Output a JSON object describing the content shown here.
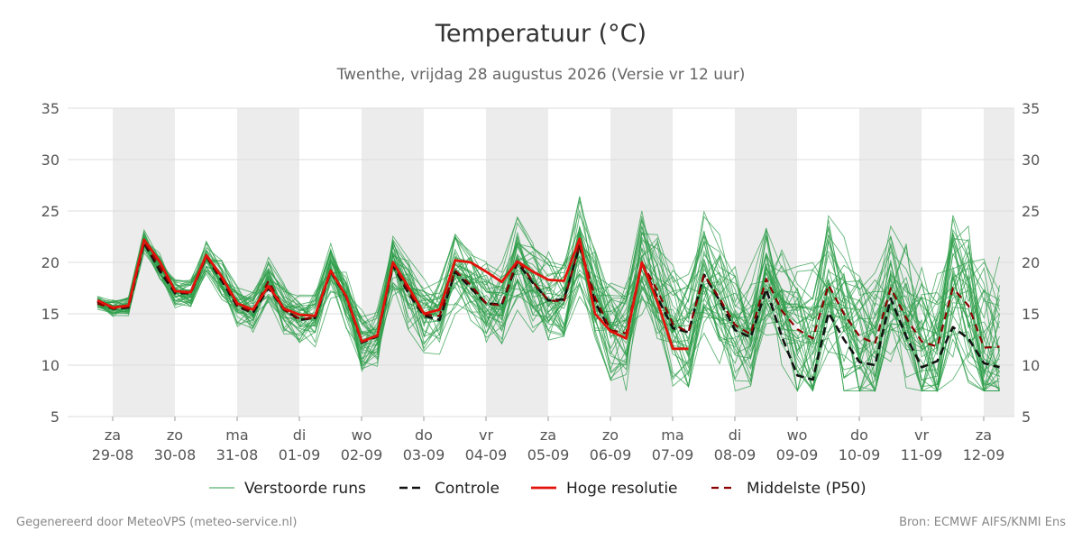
{
  "header": {
    "title": "Temperatuur (°C)",
    "subtitle": "Twenthe, vrijdag 28 augustus 2026 (Versie vr 12 uur)"
  },
  "footer": {
    "generated": "Gegenereerd door MeteoVPS (meteo-service.nl)",
    "source": "Bron: ECMWF AIFS/KNMI Ens"
  },
  "colors": {
    "ensemble": "#2e9e4a",
    "control": "#111111",
    "hires": "#e3120b",
    "median": "#8b0000",
    "band": "#ececec",
    "grid": "#dddddd"
  },
  "chart_data": {
    "type": "line",
    "title": "Temperatuur (°C)",
    "ylim": [
      5,
      35
    ],
    "yticks": [
      5,
      10,
      15,
      20,
      25,
      30,
      35
    ],
    "x_step_hours": 6,
    "grid": true,
    "legend_position": "bottom",
    "day_ticks": [
      {
        "day": "za",
        "date": "29-08"
      },
      {
        "day": "zo",
        "date": "30-08"
      },
      {
        "day": "ma",
        "date": "31-08"
      },
      {
        "day": "di",
        "date": "01-09"
      },
      {
        "day": "wo",
        "date": "02-09"
      },
      {
        "day": "do",
        "date": "03-09"
      },
      {
        "day": "vr",
        "date": "04-09"
      },
      {
        "day": "za",
        "date": "05-09"
      },
      {
        "day": "zo",
        "date": "06-09"
      },
      {
        "day": "ma",
        "date": "07-09"
      },
      {
        "day": "di",
        "date": "08-09"
      },
      {
        "day": "wo",
        "date": "09-09"
      },
      {
        "day": "do",
        "date": "10-09"
      },
      {
        "day": "vr",
        "date": "11-09"
      },
      {
        "day": "za",
        "date": "12-09"
      }
    ],
    "legend": [
      {
        "key": "ensemble",
        "label": "Verstoorde runs"
      },
      {
        "key": "control",
        "label": "Controle"
      },
      {
        "key": "hires",
        "label": "Hoge resolutie"
      },
      {
        "key": "median",
        "label": "Middelste (P50)"
      }
    ],
    "series": [
      {
        "name": "Hoge resolutie",
        "key": "hires",
        "values": [
          16.3,
          15.6,
          15.8,
          22.2,
          20.1,
          17.2,
          17.1,
          20.7,
          18.6,
          16.0,
          15.4,
          17.7,
          15.5,
          14.9,
          14.8,
          19.2,
          16.7,
          12.3,
          12.9,
          20.0,
          17.6,
          15.0,
          15.4,
          20.2,
          20.0,
          19.1,
          18.1,
          20.1,
          19.1,
          18.3,
          18.2,
          22.3,
          15.0,
          13.3,
          12.6,
          20.0,
          16.2,
          11.6,
          11.6
        ]
      },
      {
        "name": "Controle",
        "key": "control",
        "values": [
          16.2,
          15.5,
          15.6,
          21.9,
          19.2,
          17.0,
          17.0,
          20.6,
          18.2,
          15.7,
          15.1,
          17.5,
          15.4,
          14.4,
          14.6,
          19.1,
          16.6,
          12.2,
          12.8,
          19.7,
          17.0,
          14.8,
          14.4,
          19.1,
          17.5,
          16.0,
          15.9,
          20.0,
          18.0,
          16.3,
          16.4,
          21.6,
          16.1,
          13.3,
          12.6,
          19.9,
          16.6,
          13.6,
          13.2,
          18.8,
          16.3,
          13.4,
          12.7,
          17.4,
          12.8,
          9.0,
          8.6,
          15.1,
          12.5,
          10.3,
          10.0,
          16.5,
          12.8,
          9.8,
          10.4,
          13.7,
          12.6,
          10.2,
          9.8,
          17.5
        ]
      },
      {
        "name": "Middelste (P50)",
        "key": "median",
        "values": [
          16.0,
          15.5,
          15.7,
          22.0,
          19.6,
          17.1,
          17.0,
          20.6,
          18.4,
          15.8,
          15.2,
          18.2,
          15.4,
          14.5,
          14.6,
          19.2,
          16.7,
          12.3,
          12.8,
          19.9,
          17.2,
          14.9,
          14.8,
          19.2,
          17.8,
          16.0,
          15.8,
          20.3,
          18.1,
          16.3,
          16.2,
          21.8,
          16.6,
          13.4,
          13.1,
          20.0,
          17.3,
          14.0,
          13.2,
          18.8,
          16.5,
          13.9,
          13.0,
          18.4,
          15.3,
          13.5,
          12.6,
          17.8,
          15.0,
          12.8,
          12.1,
          17.5,
          14.6,
          12.3,
          11.8,
          17.5,
          15.8,
          11.7,
          11.8,
          17.9
        ]
      }
    ]
  }
}
